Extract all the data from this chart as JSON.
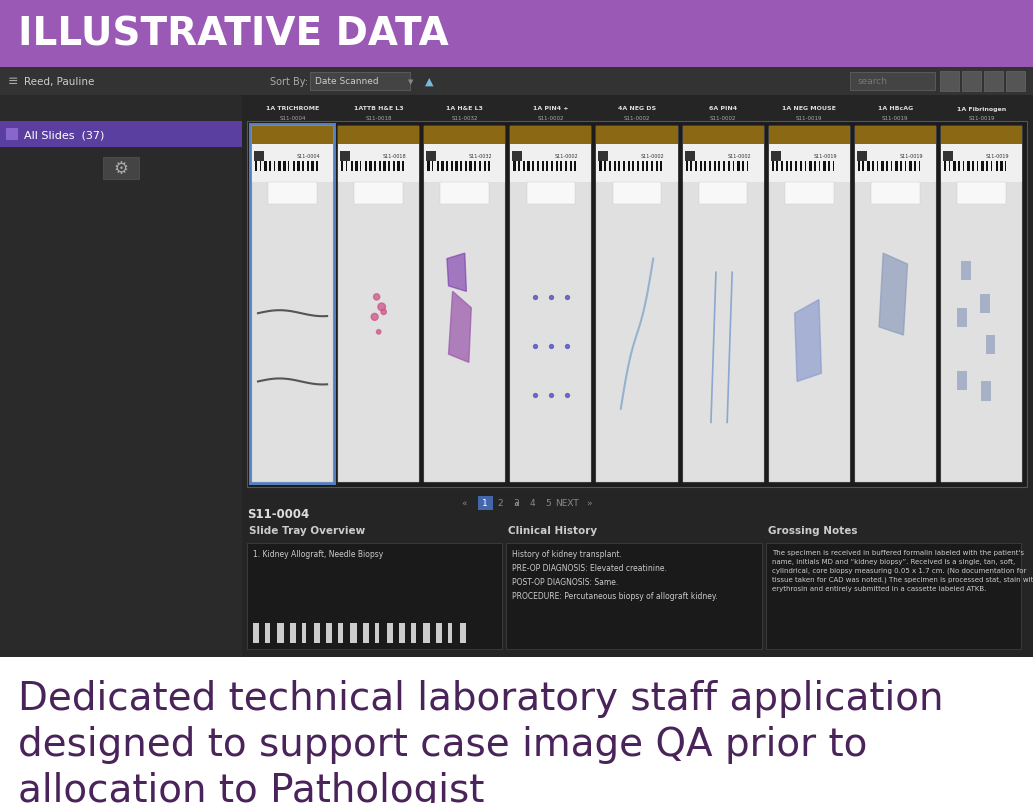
{
  "title_banner_text": "ILLUSTRATIVE DATA",
  "title_banner_bg": "#9b59b6",
  "title_banner_text_color": "#ffffff",
  "ui_bg": "#252525",
  "toolbar_bg": "#333333",
  "toolbar_text": "Reed, Pauline",
  "sortby_text": "Sort By:  Date Scanned",
  "search_text": "search",
  "sidebar_bg": "#2a2a2a",
  "sidebar_item_bg": "#5b3fa0",
  "sidebar_text": "All Slides  (37)",
  "slides": [
    {
      "label1": "1A TRICHROME",
      "label2": "S11-0004",
      "selected": true
    },
    {
      "label1": "1ATTB H&E L3",
      "label2": "S11-0018",
      "selected": false
    },
    {
      "label1": "1A H&E L3",
      "label2": "S11-0032",
      "selected": false
    },
    {
      "label1": "1A PIN4 +",
      "label2": "S11-0002",
      "selected": false
    },
    {
      "label1": "4A NEG DS",
      "label2": "S11-0002",
      "selected": false
    },
    {
      "label1": "6A PIN4",
      "label2": "S11-0002",
      "selected": false
    },
    {
      "label1": "1A NEG MOUSE",
      "label2": "S11-0019",
      "selected": false
    },
    {
      "label1": "1A HBcAG",
      "label2": "S11-0019",
      "selected": false
    },
    {
      "label1": "1A Fibrinogen",
      "label2": "S11-0019",
      "selected": false
    }
  ],
  "case_id": "S11-0004",
  "section1_title": "Slide Tray Overview",
  "section2_title": "Clinical History",
  "section3_title": "Grossing Notes",
  "tray_label": "1. Kidney Allograft, Needle Biopsy",
  "clinical_history": "History of kidney transplant.\nPRE-OP DIAGNOSIS: Elevated creatinine.\nPOST-OP DIAGNOSIS: Same.\nPROCEDURE: Percutaneous biopsy of allograft kidney.",
  "grossing_notes": "The specimen is received in buffered formalin labeled with the patient's\nname, initials MD and “kidney biopsy”. Received is a single, tan, soft,\ncylindrical, core biopsy measuring 0.05 x 1.7 cm. (No documentation for\ntissue taken for CAD was noted.) The specimen is processed stat, stain with\nerythrosin and entirely submitted in a cassette labeled ATKB.",
  "caption_line1": "Dedicated technical laboratory staff application",
  "caption_line2": "designed to support case image QA prior to",
  "caption_line3": "allocation to Pathologist",
  "caption_color": "#4a235a",
  "caption_fontsize": 28
}
